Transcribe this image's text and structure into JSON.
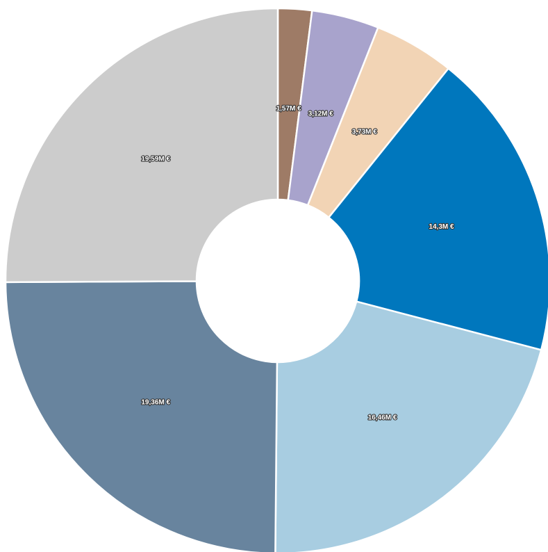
{
  "chart_data": {
    "type": "pie",
    "donut": true,
    "start_angle_deg": 0,
    "direction": "clockwise",
    "values": [
      1.57,
      3.12,
      3.73,
      14.3,
      16.46,
      19.36,
      19.59
    ],
    "data_labels": [
      "1,57M €",
      "3,12M €",
      "3,73M €",
      "14,3M €",
      "16,46M €",
      "19,36M €",
      "19,59M €"
    ],
    "colors": [
      "#9e7b66",
      "#a8a3cc",
      "#f2d4b5",
      "#0077bd",
      "#a8cde1",
      "#68849e",
      "#cccccc"
    ],
    "unit": "M €",
    "legend": "none"
  }
}
